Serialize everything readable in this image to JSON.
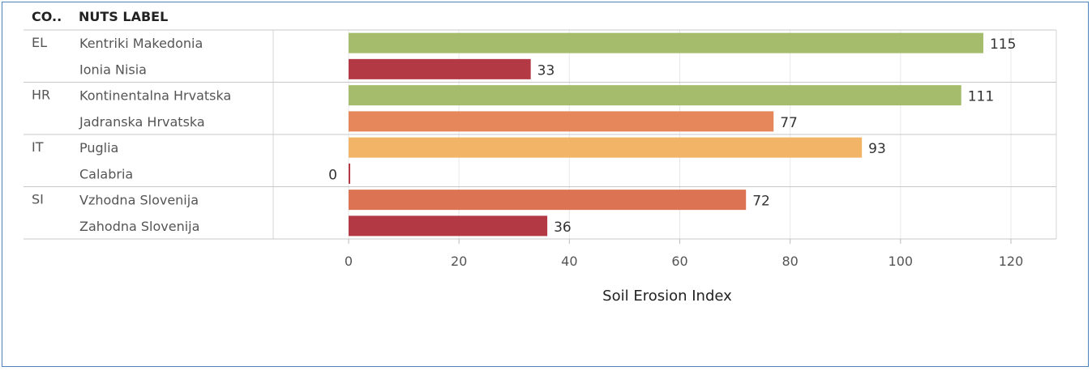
{
  "headers": {
    "country": "CO..",
    "nuts": "NUTS LABEL"
  },
  "colors": {
    "green": "#a4bc6c",
    "crimson": "#b33a44",
    "orange": "#e5875a",
    "light_orange": "#f2b567",
    "mid_orange": "#dc7353"
  },
  "chart_data": {
    "type": "bar",
    "orientation": "horizontal",
    "title": "",
    "xlabel": "Soil Erosion Index",
    "ylabel": "",
    "xlim": [
      0,
      120
    ],
    "xticks": [
      0,
      20,
      40,
      60,
      80,
      100,
      120
    ],
    "grid": true,
    "groups": [
      {
        "country": "EL",
        "rows": [
          {
            "label": "Kentriki Makedonia",
            "value": 115,
            "color": "#a4bc6c"
          },
          {
            "label": "Ionia Nisia",
            "value": 33,
            "color": "#b33a44"
          }
        ]
      },
      {
        "country": "HR",
        "rows": [
          {
            "label": "Kontinentalna Hrvatska",
            "value": 111,
            "color": "#a4bc6c"
          },
          {
            "label": "Jadranska Hrvatska",
            "value": 77,
            "color": "#e5875a"
          }
        ]
      },
      {
        "country": "IT",
        "rows": [
          {
            "label": "Puglia",
            "value": 93,
            "color": "#f2b567"
          },
          {
            "label": "Calabria",
            "value": 0,
            "color": "#b33a44"
          }
        ]
      },
      {
        "country": "SI",
        "rows": [
          {
            "label": "Vzhodna Slovenija",
            "value": 72,
            "color": "#dc7353"
          },
          {
            "label": "Zahodna Slovenija",
            "value": 36,
            "color": "#b33a44"
          }
        ]
      }
    ]
  }
}
